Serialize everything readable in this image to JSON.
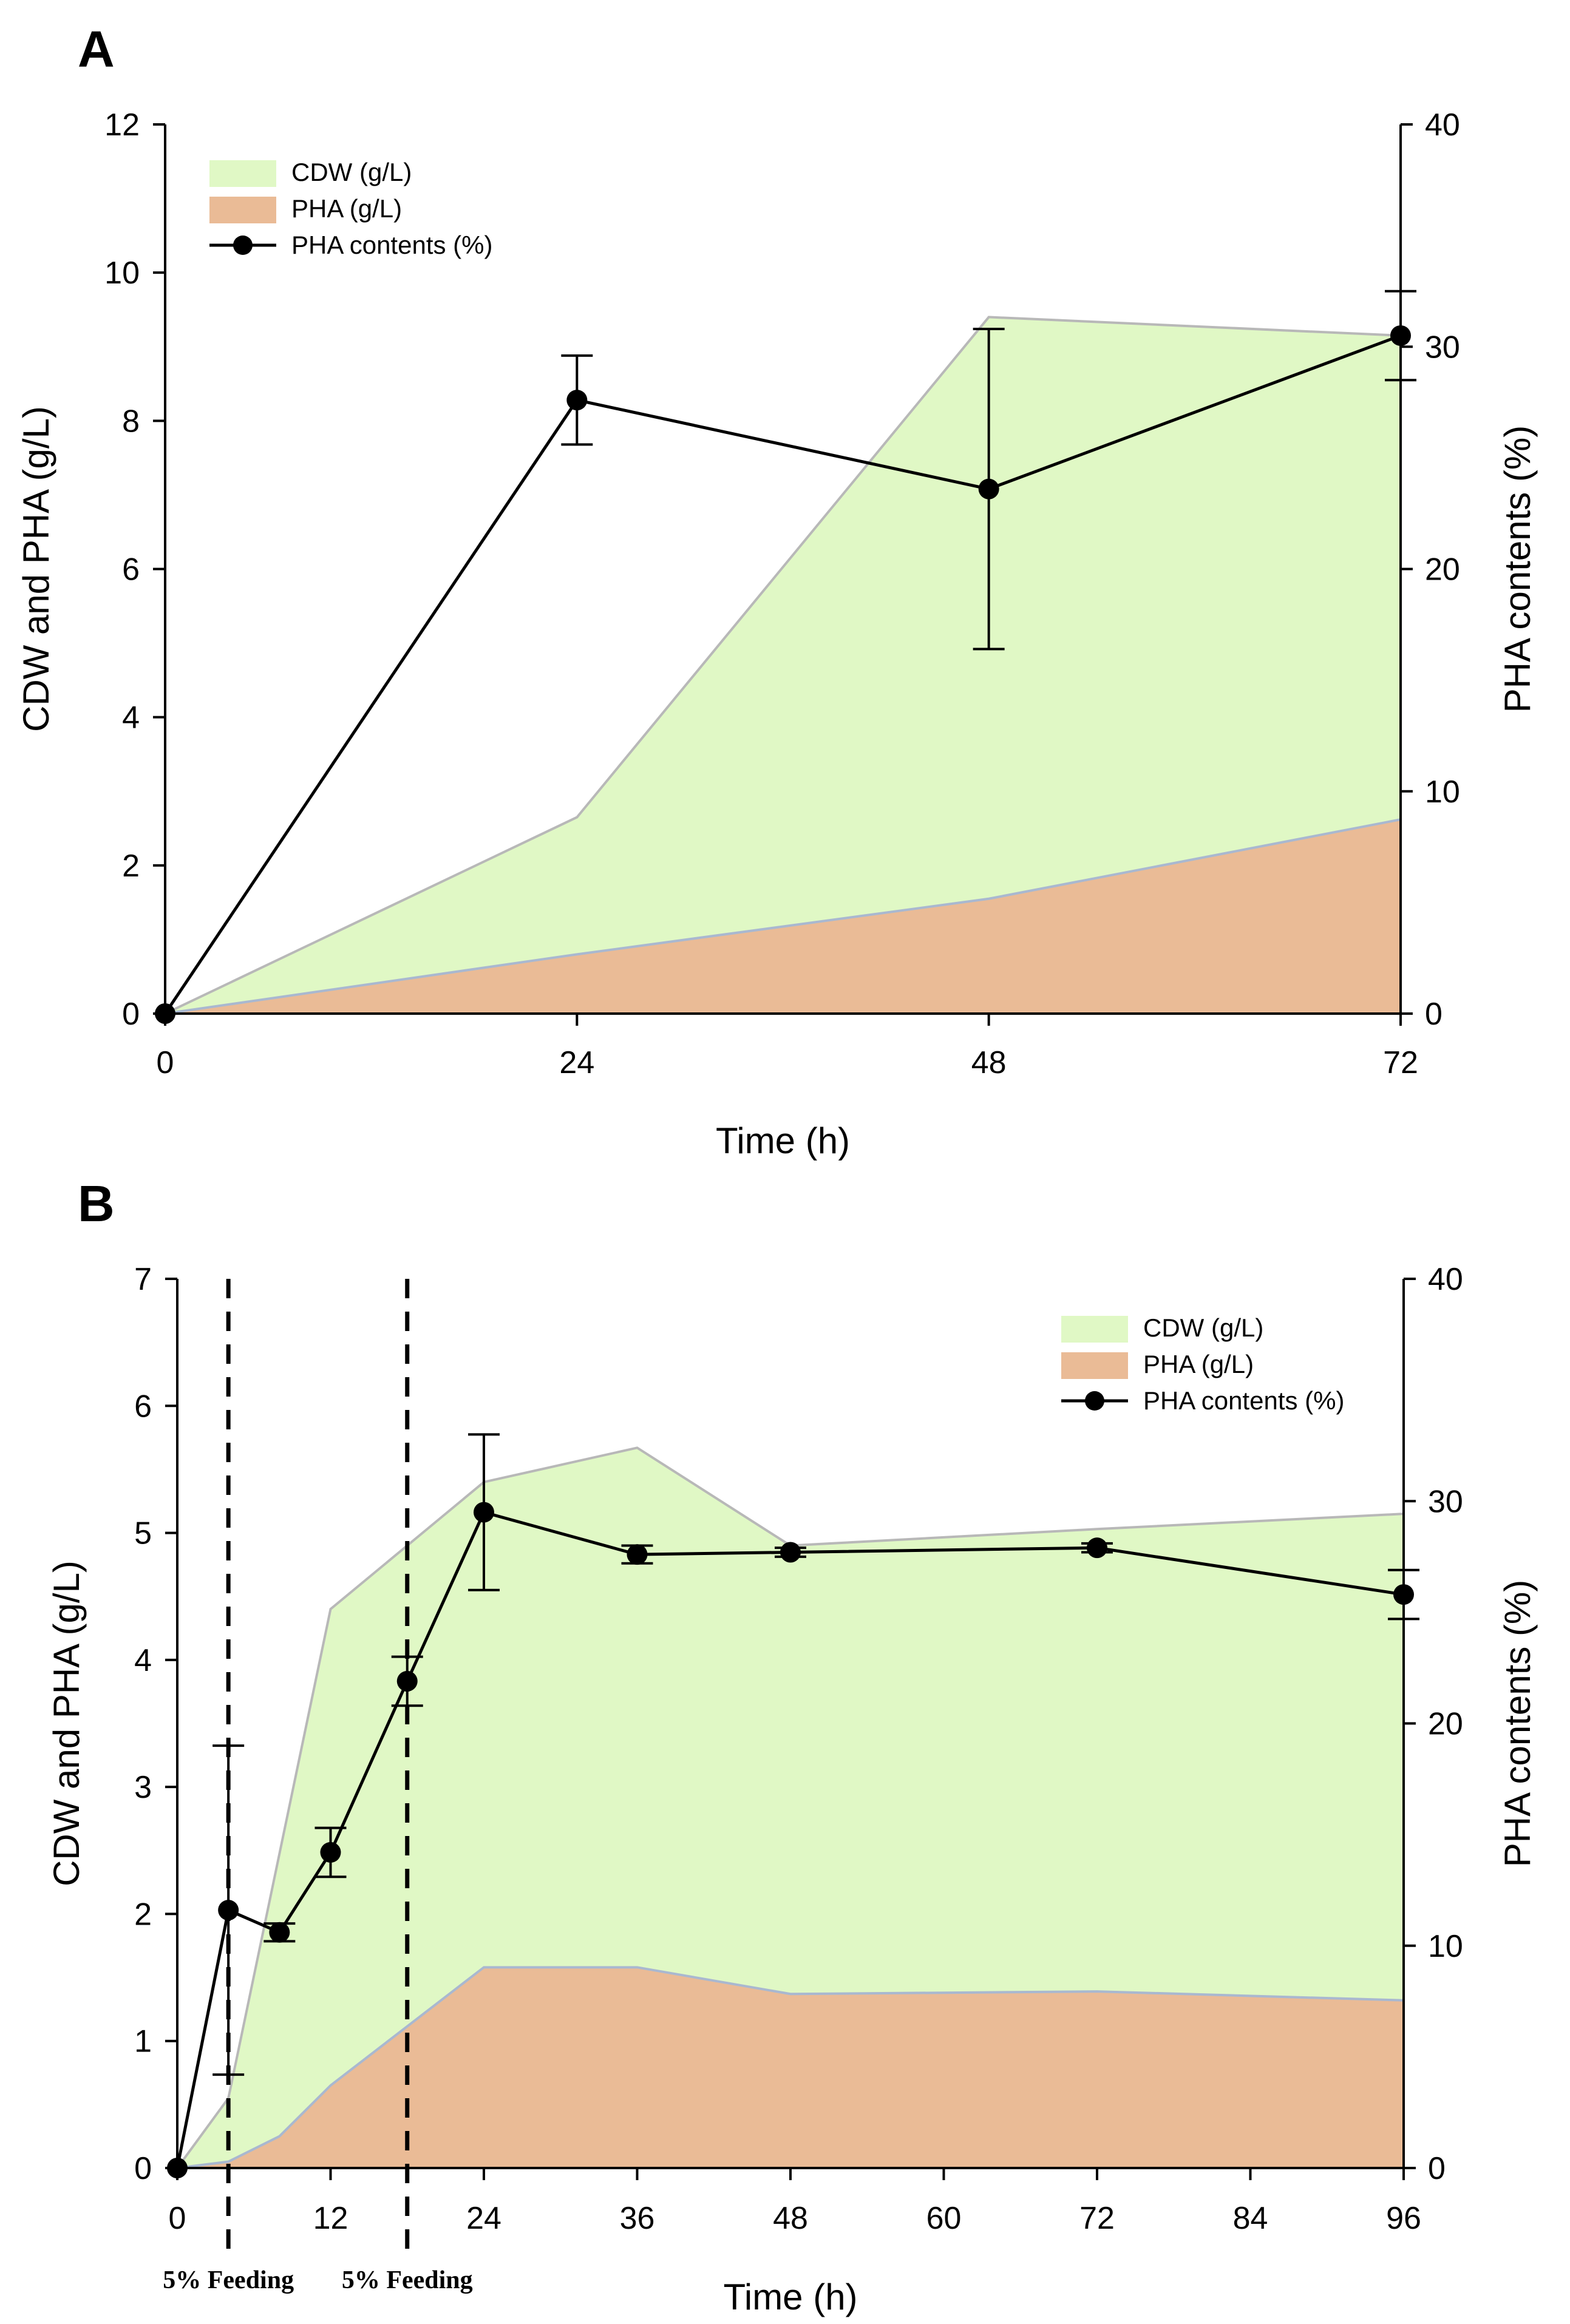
{
  "figure": {
    "panels": [
      {
        "letter": "A",
        "xlabel": "Time (h)",
        "ylabel": "CDW and PHA (g/L)",
        "y2label": "PHA contents (%)",
        "legend": [
          "CDW (g/L)",
          "PHA (g/L)",
          "PHA contents (%)"
        ]
      },
      {
        "letter": "B",
        "xlabel": "Time (h)",
        "ylabel": "CDW and PHA (g/L)",
        "y2label": "PHA contents (%)",
        "legend": [
          "CDW (g/L)",
          "PHA (g/L)",
          "PHA contents (%)"
        ],
        "feeding_labels": [
          "5% Feeding",
          "5% Feeding"
        ]
      }
    ]
  },
  "colors": {
    "cdw_fill": "#e0f8c5",
    "cdw_edge": "#b8b8b8",
    "pha_fill": "#eabb96",
    "pha_edge": "#a9b8d0",
    "line": "#000000",
    "axis": "#000000"
  },
  "chart_data": [
    {
      "type": "area",
      "title": "A",
      "xlabel": "Time (h)",
      "ylabel": "CDW and PHA (g/L)",
      "y2label": "PHA contents (%)",
      "xlim": [
        0,
        72
      ],
      "xticks": [
        0,
        24,
        48,
        72
      ],
      "ylim": [
        0,
        12
      ],
      "yticks": [
        0,
        2,
        4,
        6,
        8,
        10,
        12
      ],
      "y2lim": [
        0,
        40
      ],
      "y2ticks": [
        0,
        10,
        20,
        30,
        40
      ],
      "legend_position": "top-left",
      "series": [
        {
          "name": "CDW (g/L)",
          "type": "area",
          "axis": "left",
          "x": [
            0,
            24,
            48,
            72
          ],
          "values": [
            0,
            2.65,
            9.4,
            9.15
          ]
        },
        {
          "name": "PHA (g/L)",
          "type": "area",
          "axis": "left",
          "x": [
            0,
            24,
            48,
            72
          ],
          "values": [
            0,
            0.8,
            1.55,
            2.62
          ]
        },
        {
          "name": "PHA contents (%)",
          "type": "line",
          "axis": "right",
          "marker": "circle",
          "x": [
            0,
            24,
            48,
            72
          ],
          "values": [
            0,
            27.6,
            23.6,
            30.5
          ],
          "error": [
            0,
            2.0,
            7.2,
            2.0
          ]
        }
      ]
    },
    {
      "type": "area",
      "title": "B",
      "xlabel": "Time (h)",
      "ylabel": "CDW and PHA (g/L)",
      "y2label": "PHA contents (%)",
      "xlim": [
        0,
        96
      ],
      "xticks": [
        0,
        12,
        24,
        36,
        48,
        60,
        72,
        84,
        96
      ],
      "ylim": [
        0,
        7
      ],
      "yticks": [
        0,
        1,
        2,
        3,
        4,
        5,
        6,
        7
      ],
      "y2lim": [
        0,
        40
      ],
      "y2ticks": [
        0,
        10,
        20,
        30,
        40
      ],
      "legend_position": "top-right",
      "feeding_times": [
        4,
        18
      ],
      "feeding_labels": [
        "5% Feeding",
        "5% Feeding"
      ],
      "series": [
        {
          "name": "CDW (g/L)",
          "type": "area",
          "axis": "left",
          "x": [
            0,
            4,
            12,
            24,
            36,
            48,
            72,
            96
          ],
          "values": [
            0,
            0.55,
            4.4,
            5.4,
            5.67,
            4.9,
            5.03,
            5.15
          ]
        },
        {
          "name": "PHA (g/L)",
          "type": "area",
          "axis": "left",
          "x": [
            0,
            4,
            8,
            12,
            24,
            36,
            48,
            72,
            96
          ],
          "values": [
            0,
            0.05,
            0.25,
            0.65,
            1.58,
            1.58,
            1.37,
            1.39,
            1.32
          ]
        },
        {
          "name": "PHA contents (%)",
          "type": "line",
          "axis": "right",
          "marker": "circle",
          "x": [
            0,
            4,
            8,
            12,
            18,
            24,
            36,
            48,
            72,
            96
          ],
          "values": [
            0,
            11.6,
            10.6,
            14.2,
            21.9,
            29.5,
            27.6,
            27.7,
            27.9,
            25.8
          ],
          "error": [
            0,
            7.4,
            0.4,
            1.1,
            1.1,
            3.5,
            0.4,
            0.2,
            0.2,
            1.1
          ]
        }
      ]
    }
  ]
}
